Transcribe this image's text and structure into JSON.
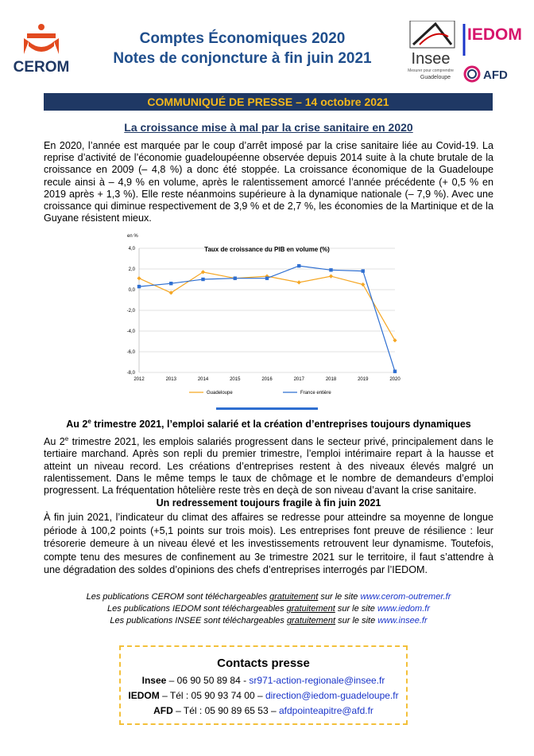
{
  "header": {
    "logo_cerom": "CEROM",
    "title_line1": "Comptes Économiques 2020",
    "title_line2": "Notes de conjoncture à fin juin 2021",
    "logo_insee": "Insee",
    "logo_insee_tagline": "Mesurer pour comprendre",
    "logo_insee_region": "Guadeloupe",
    "logo_iedom": "IEDOM",
    "logo_afd": "AFD"
  },
  "banner": "COMMUNIQUÉ DE PRESSE – 14  octobre 2021",
  "section1": {
    "heading": "La croissance mise à mal par la crise sanitaire en 2020",
    "body": "En 2020, l’année est marquée par le coup d’arrêt imposé par la crise sanitaire liée au Covid-19. La reprise d’activité de l’économie guadeloupéenne observée depuis 2014 suite à la chute brutale de la croissance en 2009 (– 4,8 %) a donc été stoppée. La croissance économique de la Guadeloupe recule ainsi à – 4,9 % en volume, après le ralentissement amorcé l’année précédente (+ 0,5 % en 2019 après + 1,3 %). Elle reste néanmoins supérieure à la dynamique nationale (– 7,9 %). Avec une croissance qui diminue respectivement de 3,9 % et de 2,7 %, les économies de la Martinique et de la Guyane résistent mieux."
  },
  "chart_data": {
    "type": "line",
    "title": "Taux de croissance du PIB en volume (%)",
    "y_label": "en %",
    "categories": [
      "2012",
      "2013",
      "2014",
      "2015",
      "2016",
      "2017",
      "2018",
      "2019",
      "2020"
    ],
    "series": [
      {
        "name": "Guadeloupe",
        "color": "#f5a623",
        "marker": "diamond",
        "values": [
          1.1,
          -0.3,
          1.7,
          1.1,
          1.3,
          0.7,
          1.3,
          0.5,
          -4.9
        ]
      },
      {
        "name": "France entière",
        "color": "#2f6fd1",
        "marker": "square",
        "values": [
          0.3,
          0.6,
          1.0,
          1.1,
          1.1,
          2.3,
          1.9,
          1.8,
          -7.9
        ]
      }
    ],
    "ylim": [
      -8,
      4
    ],
    "yticks": [
      {
        "value": -8,
        "label": "-8,0"
      },
      {
        "value": -6,
        "label": "-6,0"
      },
      {
        "value": -4,
        "label": "-4,0"
      },
      {
        "value": -2,
        "label": "-2,0"
      },
      {
        "value": 0,
        "label": "0,0"
      },
      {
        "value": 2,
        "label": "2,0"
      },
      {
        "value": 4,
        "label": "4,0"
      }
    ],
    "grid": true,
    "legend": "bottom"
  },
  "section2": {
    "heading_parts": [
      "Au 2",
      "e",
      " trimestre 2021, l’emploi salarié et la création d’entreprises toujours dynamiques"
    ],
    "body_parts": [
      "Au 2",
      "e",
      " trimestre 2021, les emplois salariés progressent dans le secteur privé, principalement dans le tertiaire marchand. Après son repli du premier trimestre, l’emploi intérimaire repart à la hausse et atteint un niveau record. Les créations d’entreprises restent à des niveaux élevés malgré un ralentissement. Dans le même temps le taux de chômage et le nombre de demandeurs d’emploi progressent. La fréquentation hôtelière reste très en deçà de son niveau d’avant la crise sanitaire."
    ]
  },
  "section3": {
    "heading": "Un redressement toujours fragile à fin juin 2021",
    "body": "À fin juin 2021, l’indicateur du climat des affaires se redresse pour atteindre sa moyenne de longue période à 100,2 points (+5,1 points sur trois mois). Les entreprises font preuve de résilience : leur trésorerie demeure à un niveau élevé et les investissements retrouvent leur dynamisme. Toutefois, compte tenu des mesures de confinement au 3e trimestre 2021 sur le territoire, il faut s’attendre à une dégradation des soldes d’opinions des chefs d’entreprises interrogés par l’IEDOM."
  },
  "publications": [
    [
      "Les publications CEROM sont téléchargeables ",
      "gratuitement",
      " sur le site ",
      "www.cerom-outremer.fr"
    ],
    [
      "Les publications IEDOM sont téléchargeables ",
      "gratuitement",
      " sur le site ",
      "www.iedom.fr"
    ],
    [
      "Les publications INSEE sont téléchargeables ",
      "gratuitement",
      " sur le site ",
      "www.insee.fr"
    ]
  ],
  "contacts": {
    "title": "Contacts presse",
    "lines": [
      [
        "Insee",
        " –  06 90 50 89 84 - ",
        "sr971-action-regionale@insee.fr"
      ],
      [
        "IEDOM",
        " – Tél : 05 90 93 74 00 – ",
        "direction@iedom-guadeloupe.fr"
      ],
      [
        "AFD",
        " – Tél : 05 90 89 65 53 – ",
        "afdpointeapitre@afd.fr"
      ]
    ]
  }
}
